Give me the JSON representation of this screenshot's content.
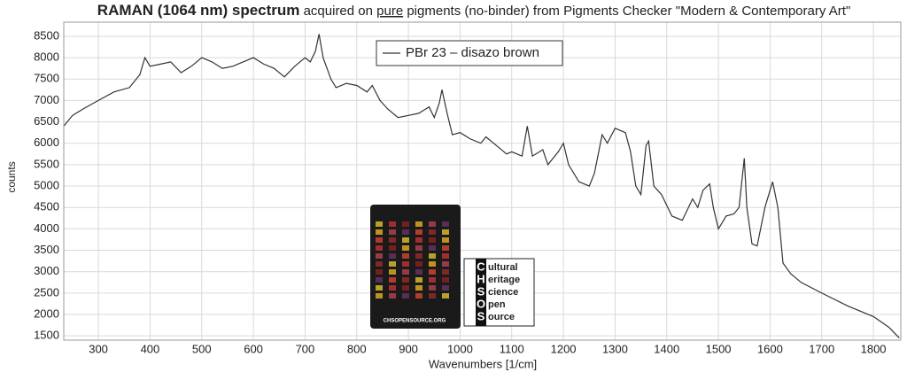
{
  "chart_data": {
    "type": "line",
    "title": "RAMAN (1064 nm) spectrum",
    "subtitle": [
      "acquired on ",
      "pure",
      " pigments (no-binder) from Pigments Checker \"Modern & Contemporary Art\""
    ],
    "x_label": "Wavenumbers [1/cm]",
    "y_label": "counts",
    "x": [
      233,
      250,
      270,
      300,
      330,
      360,
      380,
      390,
      400,
      420,
      440,
      460,
      480,
      500,
      520,
      540,
      560,
      580,
      600,
      620,
      640,
      660,
      680,
      700,
      710,
      720,
      727,
      735,
      750,
      760,
      780,
      800,
      820,
      830,
      845,
      860,
      880,
      900,
      920,
      940,
      950,
      960,
      965,
      975,
      985,
      1000,
      1020,
      1040,
      1050,
      1070,
      1090,
      1100,
      1120,
      1130,
      1140,
      1160,
      1170,
      1190,
      1200,
      1210,
      1230,
      1250,
      1260,
      1275,
      1285,
      1300,
      1320,
      1330,
      1340,
      1350,
      1360,
      1365,
      1375,
      1390,
      1410,
      1430,
      1450,
      1460,
      1470,
      1483,
      1490,
      1500,
      1515,
      1530,
      1540,
      1550,
      1555,
      1565,
      1575,
      1590,
      1605,
      1615,
      1625,
      1640,
      1660,
      1700,
      1750,
      1800,
      1830,
      1850
    ],
    "series": [
      {
        "name": "PBr 23 – disazo brown",
        "color": "#333333",
        "values": [
          6400,
          6650,
          6800,
          7000,
          7200,
          7300,
          7600,
          8000,
          7800,
          7850,
          7900,
          7650,
          7800,
          8000,
          7900,
          7750,
          7800,
          7900,
          8000,
          7850,
          7750,
          7550,
          7800,
          8000,
          7900,
          8150,
          8550,
          8000,
          7500,
          7300,
          7400,
          7350,
          7200,
          7350,
          7000,
          6800,
          6600,
          6650,
          6700,
          6850,
          6600,
          6950,
          7250,
          6700,
          6200,
          6250,
          6100,
          6000,
          6150,
          5950,
          5750,
          5800,
          5700,
          6400,
          5700,
          5850,
          5500,
          5800,
          6000,
          5500,
          5100,
          5000,
          5300,
          6200,
          6000,
          6350,
          6250,
          5800,
          5000,
          4800,
          5950,
          6050,
          5000,
          4800,
          4300,
          4200,
          4700,
          4500,
          4900,
          5050,
          4500,
          4000,
          4300,
          4350,
          4500,
          5650,
          4500,
          3650,
          3600,
          4500,
          5100,
          4500,
          3200,
          2950,
          2750,
          2500,
          2200,
          1950,
          1700,
          1450
        ]
      }
    ],
    "xlim": [
      233,
      1853
    ],
    "ylim": [
      1400,
      8830
    ],
    "xticks": [
      300,
      400,
      500,
      600,
      700,
      800,
      900,
      1000,
      1100,
      1200,
      1300,
      1400,
      1500,
      1600,
      1700,
      1800
    ],
    "yticks": [
      1500,
      2000,
      2500,
      3000,
      3500,
      4000,
      4500,
      5000,
      5500,
      6000,
      6500,
      7000,
      7500,
      8000,
      8500
    ],
    "grid": true
  },
  "logo": {
    "card_text": "CHSOPENSOURCE.ORG",
    "letters": [
      "C",
      "H",
      "S",
      "O",
      "S"
    ],
    "words": [
      "ultural",
      "eritage",
      "cience",
      "pen",
      "ource"
    ]
  }
}
